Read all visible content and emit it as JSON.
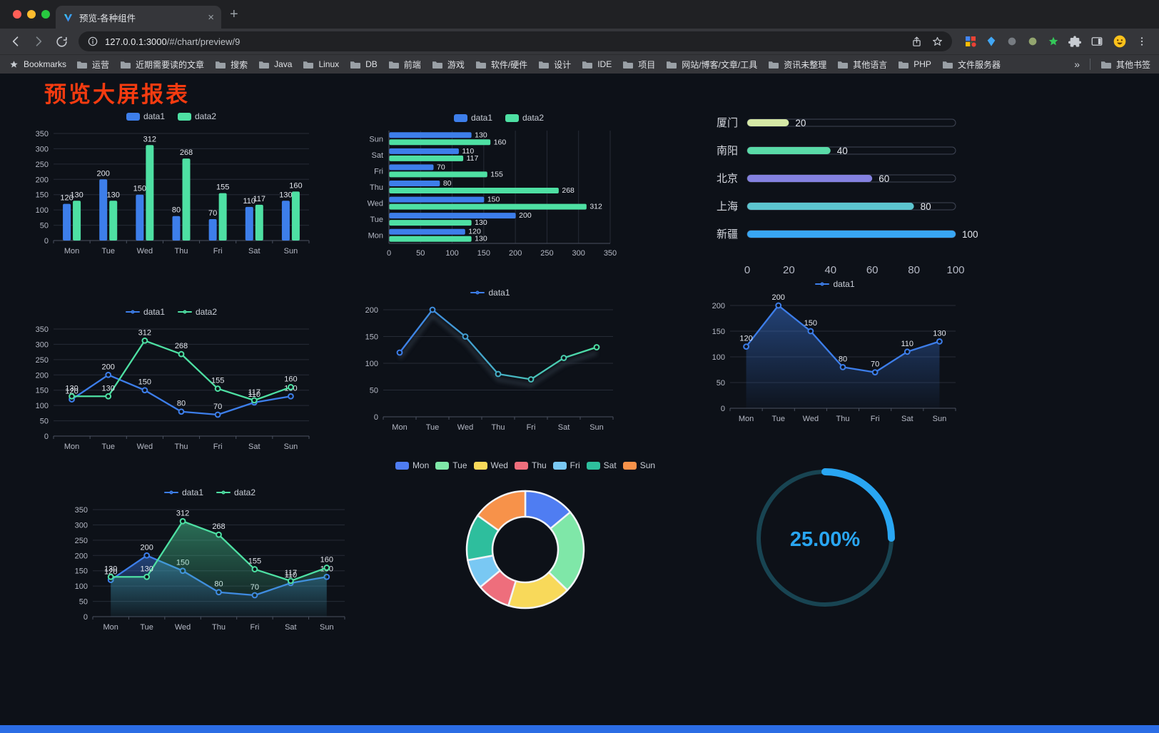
{
  "browser": {
    "tab": {
      "title": "预览-各种组件",
      "close_glyph": "×",
      "new_tab_glyph": "+"
    },
    "url": {
      "host": "127.0.0.1:3000",
      "path": "/#/chart/preview/9"
    },
    "bookmarks_bar": {
      "bookmarks_label": "Bookmarks",
      "items": [
        "运营",
        "近期需要读的文章",
        "搜索",
        "Java",
        "Linux",
        "DB",
        "前端",
        "游戏",
        "软件/硬件",
        "设计",
        "IDE",
        "项目",
        "网站/博客/文章/工具",
        "资讯未整理",
        "其他语言",
        "PHP",
        "文件服务器"
      ],
      "overflow_chevron": "»",
      "other_bookmarks_label": "其他书签"
    }
  },
  "page": {
    "title": "预览大屏报表",
    "title_color": "#f53b10",
    "background": "#0d1118",
    "footer_color": "#2b6de5"
  },
  "chart_data": [
    {
      "id": "bar-vertical",
      "type": "bar",
      "categories": [
        "Mon",
        "Tue",
        "Wed",
        "Thu",
        "Fri",
        "Sat",
        "Sun"
      ],
      "series": [
        {
          "name": "data1",
          "color": "#3D7EEA",
          "values": [
            120,
            200,
            150,
            80,
            70,
            110,
            130
          ]
        },
        {
          "name": "data2",
          "color": "#4EE0A3",
          "values": [
            130,
            130,
            312,
            268,
            155,
            117,
            160
          ]
        }
      ],
      "ylim": [
        0,
        350
      ],
      "yticks": [
        0,
        50,
        100,
        150,
        200,
        250,
        300,
        350
      ],
      "show_labels": true
    },
    {
      "id": "bar-horizontal",
      "type": "bar-horizontal",
      "categories": [
        "Mon",
        "Tue",
        "Wed",
        "Thu",
        "Fri",
        "Sat",
        "Sun"
      ],
      "series": [
        {
          "name": "data1",
          "color": "#3D7EEA",
          "values": [
            120,
            200,
            150,
            80,
            70,
            110,
            130
          ]
        },
        {
          "name": "data2",
          "color": "#4EE0A3",
          "values": [
            130,
            130,
            312,
            268,
            155,
            117,
            160
          ]
        }
      ],
      "xlim": [
        0,
        350
      ],
      "xticks": [
        0,
        50,
        100,
        150,
        200,
        250,
        300,
        350
      ],
      "show_labels": true
    },
    {
      "id": "progress-list",
      "type": "progress-list",
      "max": 100,
      "xticks": [
        0,
        20,
        40,
        60,
        80,
        100
      ],
      "items": [
        {
          "label": "厦门",
          "value": 20,
          "color": "#D6E9A6"
        },
        {
          "label": "南阳",
          "value": 40,
          "color": "#5ADBA8"
        },
        {
          "label": "北京",
          "value": 60,
          "color": "#8481E0"
        },
        {
          "label": "上海",
          "value": 80,
          "color": "#5CC5CF"
        },
        {
          "label": "新疆",
          "value": 100,
          "color": "#38A6F3"
        }
      ]
    },
    {
      "id": "line-two",
      "type": "line",
      "categories": [
        "Mon",
        "Tue",
        "Wed",
        "Thu",
        "Fri",
        "Sat",
        "Sun"
      ],
      "series": [
        {
          "name": "data1",
          "color": "#3D7EEA",
          "values": [
            120,
            200,
            150,
            80,
            70,
            110,
            130
          ]
        },
        {
          "name": "data2",
          "color": "#4EE0A3",
          "values": [
            130,
            130,
            312,
            268,
            155,
            117,
            160
          ]
        }
      ],
      "ylim": [
        0,
        350
      ],
      "yticks": [
        0,
        50,
        100,
        150,
        200,
        250,
        300,
        350
      ],
      "show_labels": true
    },
    {
      "id": "line-gradient",
      "type": "line",
      "categories": [
        "Mon",
        "Tue",
        "Wed",
        "Thu",
        "Fri",
        "Sat",
        "Sun"
      ],
      "series": [
        {
          "name": "data1",
          "gradient": [
            "#3D7EEA",
            "#4EE0A3"
          ],
          "values": [
            120,
            200,
            150,
            80,
            70,
            110,
            130
          ]
        }
      ],
      "ylim": [
        0,
        200
      ],
      "yticks": [
        0,
        50,
        100,
        150,
        200
      ],
      "show_labels": false
    },
    {
      "id": "area-single",
      "type": "line",
      "categories": [
        "Mon",
        "Tue",
        "Wed",
        "Thu",
        "Fri",
        "Sat",
        "Sun"
      ],
      "series": [
        {
          "name": "data1",
          "color": "#3D7EEA",
          "area": true,
          "values": [
            120,
            200,
            150,
            80,
            70,
            110,
            130
          ]
        }
      ],
      "ylim": [
        0,
        200
      ],
      "yticks": [
        0,
        50,
        100,
        150,
        200
      ],
      "show_labels": true
    },
    {
      "id": "area-two",
      "type": "line",
      "categories": [
        "Mon",
        "Tue",
        "Wed",
        "Thu",
        "Fri",
        "Sat",
        "Sun"
      ],
      "series": [
        {
          "name": "data1",
          "color": "#3D7EEA",
          "area": true,
          "values": [
            120,
            200,
            150,
            80,
            70,
            110,
            130
          ]
        },
        {
          "name": "data2",
          "color": "#4EE0A3",
          "area": true,
          "values": [
            130,
            130,
            312,
            268,
            155,
            117,
            160
          ]
        }
      ],
      "ylim": [
        0,
        350
      ],
      "yticks": [
        0,
        50,
        100,
        150,
        200,
        250,
        300,
        350
      ],
      "show_labels": true
    },
    {
      "id": "donut",
      "type": "pie",
      "categories": [
        "Mon",
        "Tue",
        "Wed",
        "Thu",
        "Fri",
        "Sat",
        "Sun"
      ],
      "values": [
        120,
        200,
        150,
        80,
        70,
        110,
        130
      ],
      "colors": [
        "#4F7DF2",
        "#7FE7A8",
        "#F8D95A",
        "#EE6E7C",
        "#79C8F3",
        "#2EBE9D",
        "#F7924A"
      ]
    },
    {
      "id": "gauge",
      "type": "gauge",
      "value": 25,
      "label": "25.00%",
      "color": "#29A6F2",
      "track_color": "#184452"
    }
  ]
}
